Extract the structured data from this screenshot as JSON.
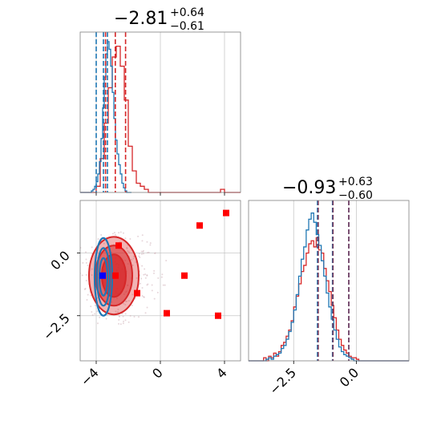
{
  "chart_data": {
    "type": "corner",
    "colors": {
      "red": "#d62728",
      "blue": "#1f77b4",
      "truth_blue": "#0000ff",
      "marker_red": "#ff0000"
    },
    "panels": [
      {
        "id": "hist-param-1",
        "kind": "histogram",
        "title_main": "−2.81",
        "title_sup": "+0.64",
        "title_sub": "−0.61",
        "xlim": [
          -5.0,
          5.0
        ],
        "x_grid": [
          -4,
          0,
          4
        ],
        "red_quantiles": [
          -3.42,
          -2.81,
          -2.17
        ],
        "blue_quantiles": [
          -4.0,
          -3.55,
          -3.3
        ],
        "red_hist": {
          "x0": -5.0,
          "dx": 0.25,
          "values": [
            0,
            0,
            0,
            0,
            0.04,
            0.22,
            0.45,
            0.68,
            0.88,
            0.95,
            0.82,
            0.6,
            0.3,
            0.14,
            0.06,
            0.04,
            0.02,
            0,
            0,
            0,
            0,
            0,
            0,
            0,
            0,
            0,
            0,
            0,
            0,
            0,
            0,
            0,
            0,
            0,
            0,
            0.02,
            0,
            0,
            0,
            0
          ]
        },
        "blue_hist": {
          "x0": -5.0,
          "dx": 0.1,
          "values": [
            0,
            0,
            0,
            0,
            0,
            0,
            0,
            0.01,
            0.02,
            0.04,
            0.07,
            0.12,
            0.2,
            0.35,
            0.55,
            0.75,
            0.9,
            0.98,
            0.93,
            0.82,
            0.65,
            0.48,
            0.34,
            0.25,
            0.18,
            0.12,
            0.06,
            0.03,
            0.01,
            0,
            0,
            0
          ]
        }
      },
      {
        "id": "scatter-2d",
        "kind": "contour",
        "xlim": [
          -5.0,
          5.0
        ],
        "ylim": [
          -4.3,
          2.1
        ],
        "x_ticks": [
          "−4",
          "0",
          "4"
        ],
        "x_tick_values": [
          -4,
          0,
          4
        ],
        "y_ticks": [
          "0.0",
          "−2.5"
        ],
        "y_tick_values": [
          0.0,
          -2.5
        ],
        "red_squares": [
          [
            -2.6,
            0.3
          ],
          [
            -2.8,
            -0.9
          ],
          [
            -1.45,
            -1.6
          ],
          [
            0.4,
            -2.4
          ],
          [
            1.5,
            -0.9
          ],
          [
            2.45,
            1.1
          ],
          [
            4.1,
            1.6
          ],
          [
            3.6,
            -2.5
          ]
        ],
        "blue_square": [
          -3.6,
          -0.9
        ],
        "red_contours": [
          {
            "cx": -2.9,
            "cy": -0.9,
            "rx": 1.55,
            "ry": 1.55,
            "opacity": 0.35
          },
          {
            "cx": -2.9,
            "cy": -0.9,
            "rx": 1.15,
            "ry": 1.2,
            "opacity": 0.55
          },
          {
            "cx": -2.9,
            "cy": -0.9,
            "rx": 0.75,
            "ry": 0.85,
            "opacity": 0.75
          }
        ],
        "blue_contours": [
          {
            "cx": -3.55,
            "cy": -0.95,
            "rx": 0.55,
            "ry": 1.55
          },
          {
            "cx": -3.55,
            "cy": -0.95,
            "rx": 0.4,
            "ry": 1.15
          },
          {
            "cx": -3.55,
            "cy": -0.95,
            "rx": 0.25,
            "ry": 0.75
          }
        ]
      },
      {
        "id": "hist-param-2",
        "kind": "histogram",
        "title_main": "−0.93",
        "title_sup": "+0.63",
        "title_sub": "−0.60",
        "xlim": [
          -4.3,
          2.1
        ],
        "x_grid": [
          -2.5,
          0.0
        ],
        "x_ticks": [
          "−2.5",
          "0.0"
        ],
        "x_tick_values": [
          -2.5,
          0.0
        ],
        "red_quantiles": [
          -1.52,
          -0.93,
          -0.3
        ],
        "blue_quantiles": [
          -1.55,
          -0.95,
          -0.3
        ],
        "red_hist": {
          "x0": -4.3,
          "dx": 0.1,
          "values": [
            0,
            0,
            0,
            0,
            0,
            0,
            0.02,
            0,
            0.03,
            0.02,
            0.05,
            0.03,
            0.06,
            0.1,
            0.12,
            0.16,
            0.2,
            0.26,
            0.35,
            0.42,
            0.5,
            0.58,
            0.62,
            0.7,
            0.76,
            0.78,
            0.74,
            0.8,
            0.72,
            0.7,
            0.6,
            0.52,
            0.45,
            0.36,
            0.28,
            0.2,
            0.14,
            0.1,
            0.07,
            0.05,
            0.03,
            0.02,
            0.02,
            0.01,
            0,
            0,
            0,
            0,
            0,
            0,
            0,
            0,
            0,
            0,
            0,
            0,
            0,
            0,
            0,
            0,
            0,
            0,
            0,
            0
          ]
        },
        "blue_hist": {
          "x0": -4.3,
          "dx": 0.1,
          "values": [
            0,
            0,
            0,
            0,
            0,
            0,
            0,
            0.01,
            0.02,
            0.01,
            0.03,
            0.04,
            0.05,
            0.08,
            0.1,
            0.14,
            0.19,
            0.25,
            0.33,
            0.43,
            0.55,
            0.66,
            0.74,
            0.85,
            0.92,
            0.96,
            0.9,
            0.82,
            0.75,
            0.65,
            0.55,
            0.44,
            0.35,
            0.27,
            0.2,
            0.14,
            0.09,
            0.06,
            0.04,
            0.03,
            0.02,
            0.01,
            0,
            0,
            0,
            0,
            0,
            0,
            0,
            0,
            0,
            0,
            0,
            0,
            0,
            0,
            0,
            0,
            0,
            0,
            0,
            0,
            0,
            0
          ]
        }
      }
    ]
  }
}
